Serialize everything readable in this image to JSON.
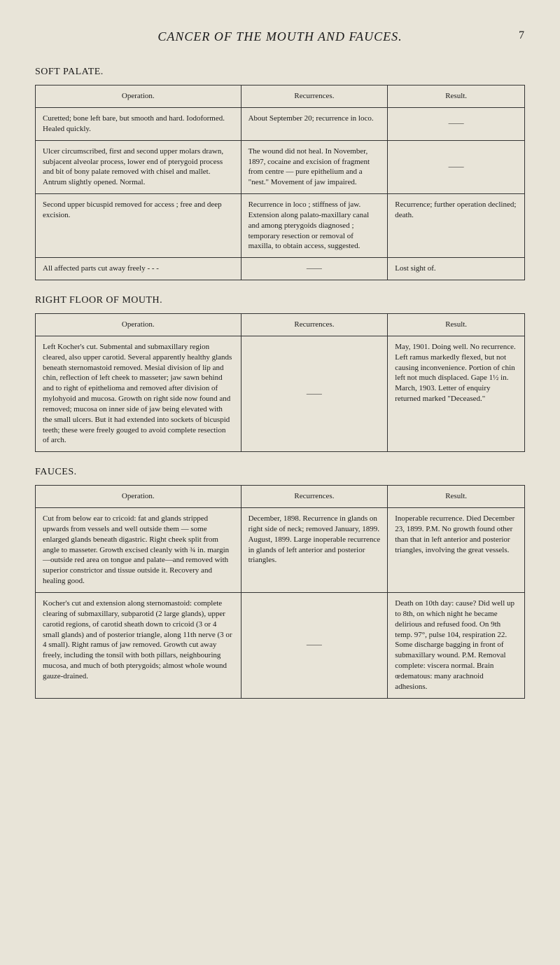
{
  "page": {
    "title": "CANCER OF THE MOUTH AND FAUCES.",
    "number": "7"
  },
  "headers": {
    "operation": "Operation.",
    "recurrences": "Recurrences.",
    "result": "Result."
  },
  "sections": [
    {
      "title": "SOFT PALATE.",
      "rows": [
        {
          "op": "Curetted; bone left bare, but smooth and hard. Iodoformed. Healed quickly.",
          "rec": "About September 20; recurrence in loco.",
          "res": "——"
        },
        {
          "op": "Ulcer circumscribed, first and second upper molars drawn, subjacent alveolar process, lower end of pterygoid process and bit of bony palate removed with chisel and mallet. Antrum slightly opened. Normal.",
          "rec": "The wound did not heal. In November, 1897, cocaine and excision of fragment from centre — pure epithelium and a \"nest.\" Movement of jaw impaired.",
          "res": "——"
        },
        {
          "op": "Second upper bicuspid removed for access ; free and deep excision.",
          "rec": "Recurrence in loco ; stiffness of jaw. Extension along palato-maxillary canal and among pterygoids diagnosed ; temporary resection or removal of maxilla, to obtain access, suggested.",
          "res": "Recurrence; further operation declined; death."
        },
        {
          "op": "All affected parts cut away freely   -   -   -",
          "rec": "——",
          "res": "Lost sight of."
        }
      ]
    },
    {
      "title": "RIGHT FLOOR OF MOUTH.",
      "rows": [
        {
          "op": "Left Kocher's cut. Submental and submaxillary region cleared, also upper carotid. Several apparently healthy glands beneath sternomastoid removed. Mesial division of lip and chin, reflection of left cheek to masseter; jaw sawn behind and to right of epithelioma and removed after division of mylohyoid and mucosa. Growth on right side now found and removed; mucosa on inner side of jaw being elevated with the small ulcers. But it had extended into sockets of bicuspid teeth; these were freely gouged to avoid complete resection of arch.",
          "rec": "——",
          "res": "May, 1901. Doing well. No recurrence. Left ramus markedly flexed, but not causing inconvenience. Portion of chin left not much displaced. Gape 1½ in. March, 1903. Letter of enquiry returned marked \"Deceased.\""
        }
      ]
    },
    {
      "title": "FAUCES.",
      "rows": [
        {
          "op": "Cut from below ear to cricoid: fat and glands stripped upwards from vessels and well outside them — some enlarged glands beneath digastric. Right cheek split from angle to masseter. Growth excised cleanly with ¾ in. margin —outside red area on tongue and palate—and removed with superior constrictor and tissue outside it. Recovery and healing good.",
          "rec": "December, 1898. Recurrence in glands on right side of neck; removed January, 1899. August, 1899. Large inoperable recurrence in glands of left anterior and posterior triangles.",
          "res": "Inoperable recurrence. Died December 23, 1899. P.M. No growth found other than that in left anterior and posterior triangles, involving the great vessels."
        },
        {
          "op": "Kocher's cut and extension along sternomastoid: complete clearing of submaxillary, subparotid (2 large glands), upper carotid regions, of carotid sheath down to cricoid (3 or 4 small glands) and of posterior triangle, along 11th nerve (3 or 4 small). Right ramus of jaw removed. Growth cut away freely, including the tonsil with both pillars, neighbouring mucosa, and much of both pterygoids; almost whole wound gauze-drained.",
          "rec": "——",
          "res": "Death on 10th day: cause? Did well up to 8th, on which night he became delirious and refused food. On 9th temp. 97°, pulse 104, respiration 22. Some discharge bagging in front of submaxillary wound. P.M. Removal complete: viscera normal. Brain œdematous: many arachnoid adhesions."
        }
      ]
    }
  ]
}
